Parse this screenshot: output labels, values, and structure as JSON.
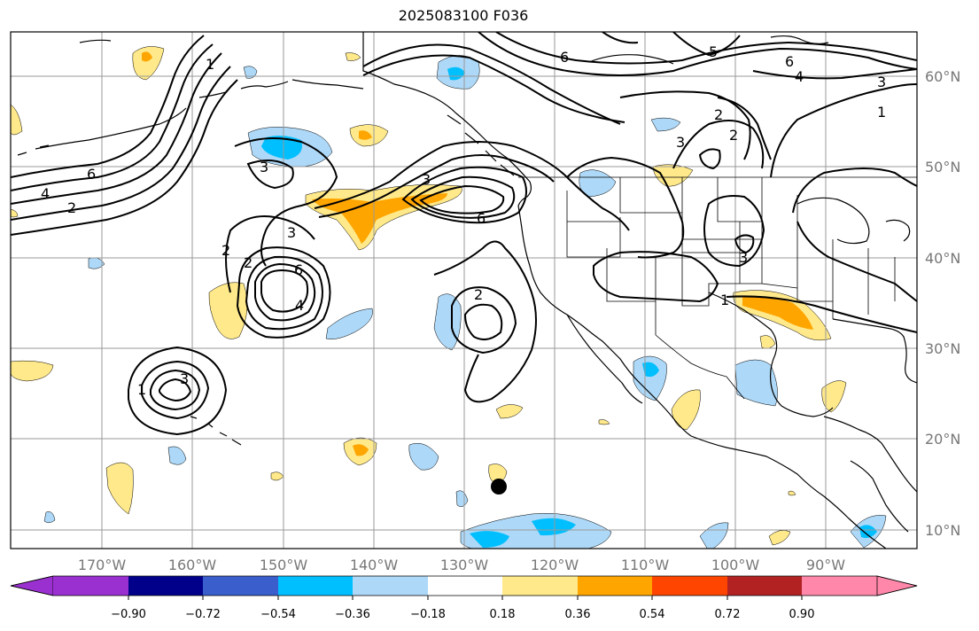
{
  "title": "2025083100 F036",
  "map": {
    "longitude_labels": [
      "170°W",
      "160°W",
      "150°W",
      "140°W",
      "130°W",
      "120°W",
      "110°W",
      "100°W",
      "90°W"
    ],
    "latitude_labels": [
      "60°N",
      "50°N",
      "40°N",
      "30°N",
      "20°N",
      "10°N"
    ],
    "contour_labels": [
      "5",
      "6",
      "4",
      "3",
      "2",
      "1",
      "6",
      "4",
      "2",
      "6",
      "3",
      "3",
      "6",
      "2",
      "1",
      "2",
      "3",
      "3",
      "2",
      "6",
      "4",
      "1",
      "3",
      "2",
      "3",
      "1"
    ],
    "marker": "storm-position-dot"
  },
  "colorbar": {
    "ticks": [
      "−0.90",
      "−0.72",
      "−0.54",
      "−0.36",
      "−0.18",
      "0.18",
      "0.36",
      "0.54",
      "0.72",
      "0.90"
    ],
    "colors": [
      "#9b30d0",
      "#00008b",
      "#3a5fcd",
      "#00bfff",
      "#add8f7",
      "#ffffff",
      "#ffe98a",
      "#ffa500",
      "#ff4500",
      "#b22222",
      "#ff88aa"
    ]
  }
}
